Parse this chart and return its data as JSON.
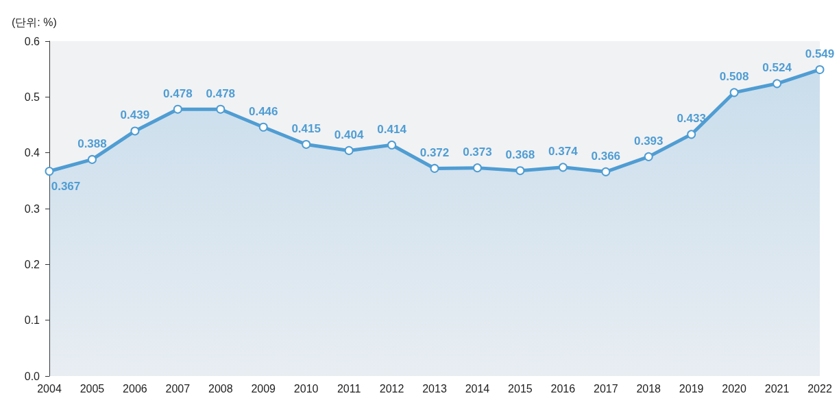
{
  "chart_data": {
    "type": "area",
    "ylabel": "(단위: %)",
    "categories": [
      "2004",
      "2005",
      "2006",
      "2007",
      "2008",
      "2009",
      "2010",
      "2011",
      "2012",
      "2013",
      "2014",
      "2015",
      "2016",
      "2017",
      "2018",
      "2019",
      "2020",
      "2021",
      "2022"
    ],
    "series": [
      {
        "color": "#4f9dd3",
        "values": [
          0.367,
          0.388,
          0.439,
          0.478,
          0.478,
          0.446,
          0.415,
          0.404,
          0.414,
          0.372,
          0.373,
          0.368,
          0.374,
          0.366,
          0.393,
          0.433,
          0.508,
          0.524,
          0.549
        ]
      }
    ],
    "ylim": [
      0,
      0.6
    ],
    "yticks": [
      {
        "value": 0,
        "label": "0.0"
      },
      0.1,
      0.2,
      0.3,
      0.4,
      0.5,
      0.6
    ],
    "grid": false,
    "marker": "circle",
    "line_style": "solid",
    "data_labels": true
  }
}
